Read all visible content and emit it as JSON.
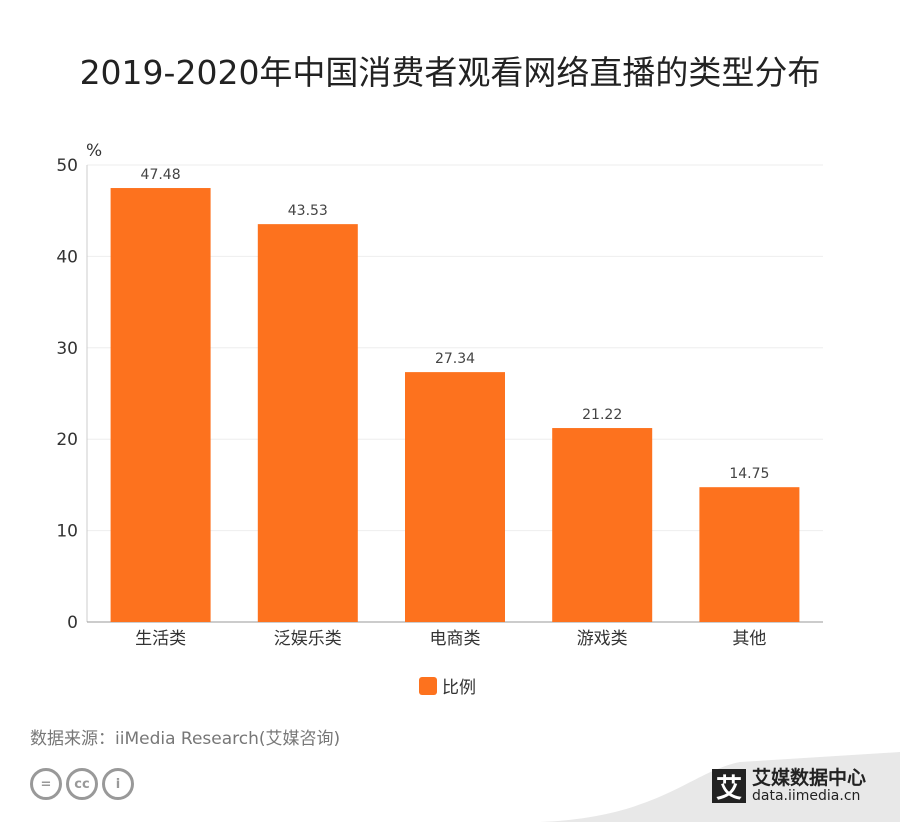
{
  "title": "2019-2020年中国消费者观看网络直播的类型分布",
  "chart_data": {
    "type": "bar",
    "title": "2019-2020年中国消费者观看网络直播的类型分布",
    "categories": [
      "生活类",
      "泛娱乐类",
      "电商类",
      "游戏类",
      "其他"
    ],
    "series": [
      {
        "name": "比例",
        "values": [
          47.48,
          43.53,
          27.34,
          21.22,
          14.75
        ],
        "color": "#fd721e"
      }
    ],
    "ylabel": "%",
    "ylim": [
      0,
      50
    ],
    "yticks": [
      0,
      10,
      20,
      30,
      40,
      50
    ],
    "grid": true,
    "legend": "bottom",
    "data_labels": [
      "47.48",
      "43.53",
      "27.34",
      "21.22",
      "14.75"
    ]
  },
  "footer": {
    "source": "数据来源：iiMedia Research(艾媒咨询)",
    "license_icons": [
      "equals-icon",
      "cc-icon",
      "person-icon"
    ],
    "license_glyphs": [
      "=",
      "cc",
      "i"
    ],
    "brand_mark": "艾",
    "brand_name": "艾媒数据中心",
    "brand_url": "data.iimedia.cn"
  }
}
